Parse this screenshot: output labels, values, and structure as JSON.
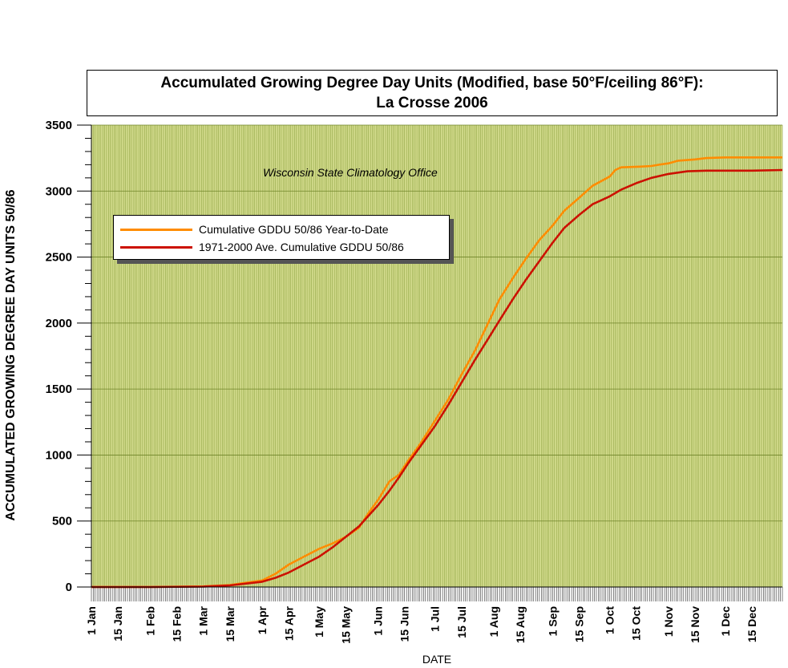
{
  "chart_data": {
    "type": "line",
    "title": "Accumulated Growing Degree Day Units (Modified, base 50°F/ceiling 86°F):",
    "subtitle": "La Crosse 2006",
    "annotation": "Wisconsin State Climatology Office",
    "xlabel": "DATE",
    "ylabel": "ACCUMULATED GROWING DEGREE DAY UNITS 50/86",
    "ylim": [
      0,
      3500
    ],
    "yticks": [
      0,
      500,
      1000,
      1500,
      2000,
      2500,
      3000,
      3500
    ],
    "xlim_day_of_year": [
      1,
      365
    ],
    "xticks": [
      {
        "label": "1 Jan",
        "day": 1
      },
      {
        "label": "15 Jan",
        "day": 15
      },
      {
        "label": "1 Feb",
        "day": 32
      },
      {
        "label": "15 Feb",
        "day": 46
      },
      {
        "label": "1 Mar",
        "day": 60
      },
      {
        "label": "15 Mar",
        "day": 74
      },
      {
        "label": "1 Apr",
        "day": 91
      },
      {
        "label": "15 Apr",
        "day": 105
      },
      {
        "label": "1 May",
        "day": 121
      },
      {
        "label": "15 May",
        "day": 135
      },
      {
        "label": "1 Jun",
        "day": 152
      },
      {
        "label": "15 Jun",
        "day": 166
      },
      {
        "label": "1 Jul",
        "day": 182
      },
      {
        "label": "15 Jul",
        "day": 196
      },
      {
        "label": "1 Aug",
        "day": 213
      },
      {
        "label": "15 Aug",
        "day": 227
      },
      {
        "label": "1 Sep",
        "day": 244
      },
      {
        "label": "15 Sep",
        "day": 258
      },
      {
        "label": "1 Oct",
        "day": 274
      },
      {
        "label": "15 Oct",
        "day": 288
      },
      {
        "label": "1 Nov",
        "day": 305
      },
      {
        "label": "15 Nov",
        "day": 319
      },
      {
        "label": "1 Dec",
        "day": 335
      },
      {
        "label": "15 Dec",
        "day": 349
      }
    ],
    "grid": true,
    "legend_position": "upper-left",
    "series": [
      {
        "name": "Cumulative GDDU 50/86 Year-to-Date",
        "color": "#ff8c00",
        "x": [
          1,
          32,
          60,
          74,
          91,
          98,
          105,
          113,
          121,
          128,
          135,
          142,
          147,
          152,
          158,
          163,
          168,
          174,
          182,
          189,
          196,
          203,
          210,
          216,
          223,
          230,
          237,
          244,
          250,
          258,
          265,
          274,
          277,
          280,
          290,
          296,
          300,
          305,
          310,
          319,
          325,
          335,
          349,
          365
        ],
        "y": [
          0,
          0,
          5,
          15,
          50,
          100,
          170,
          230,
          290,
          330,
          380,
          450,
          560,
          660,
          800,
          850,
          960,
          1080,
          1260,
          1420,
          1610,
          1790,
          2000,
          2180,
          2340,
          2490,
          2630,
          2740,
          2850,
          2950,
          3040,
          3110,
          3160,
          3180,
          3185,
          3190,
          3200,
          3210,
          3230,
          3240,
          3250,
          3255,
          3255,
          3255
        ]
      },
      {
        "name": "1971-2000 Ave. Cumulative GDDU 50/86",
        "color": "#cc1100",
        "x": [
          1,
          32,
          60,
          74,
          91,
          98,
          105,
          113,
          121,
          128,
          135,
          142,
          147,
          152,
          158,
          163,
          168,
          174,
          182,
          189,
          196,
          203,
          210,
          216,
          223,
          230,
          237,
          244,
          250,
          258,
          265,
          274,
          280,
          288,
          296,
          305,
          315,
          325,
          335,
          349,
          365
        ],
        "y": [
          0,
          0,
          3,
          12,
          40,
          70,
          110,
          170,
          230,
          300,
          380,
          460,
          540,
          620,
          730,
          830,
          940,
          1060,
          1220,
          1380,
          1550,
          1720,
          1880,
          2020,
          2180,
          2330,
          2470,
          2610,
          2720,
          2820,
          2900,
          2960,
          3010,
          3060,
          3100,
          3130,
          3150,
          3155,
          3155,
          3155,
          3160
        ]
      }
    ]
  }
}
